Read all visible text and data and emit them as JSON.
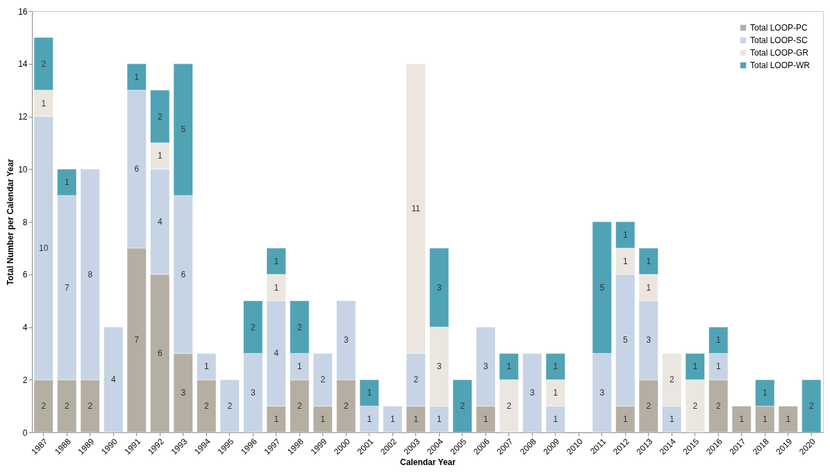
{
  "chart_data": {
    "type": "bar",
    "stacked": true,
    "data_labels": true,
    "grid": false,
    "legend": "top right",
    "xlabel": "Calendar Year",
    "ylabel": "Total Number per Calendar Year",
    "categories": [
      "1987",
      "1988",
      "1989",
      "1990",
      "1991",
      "1992",
      "1993",
      "1994",
      "1995",
      "1996",
      "1997",
      "1998",
      "1999",
      "2000",
      "2001",
      "2002",
      "2003",
      "2004",
      "2005",
      "2006",
      "2007",
      "2008",
      "2009",
      "2010",
      "2011",
      "2012",
      "2013",
      "2014",
      "2015",
      "2016",
      "2017",
      "2018",
      "2019",
      "2020"
    ],
    "ylim": [
      0,
      16
    ],
    "yticks": [
      0,
      2,
      4,
      6,
      8,
      10,
      12,
      14,
      16
    ],
    "series": [
      {
        "name": "Total LOOP-PC",
        "color": "#b5afa3",
        "values": [
          2,
          2,
          2,
          null,
          7,
          6,
          3,
          2,
          null,
          null,
          1,
          2,
          1,
          2,
          null,
          null,
          1,
          null,
          null,
          1,
          null,
          null,
          null,
          null,
          null,
          1,
          2,
          null,
          null,
          2,
          1,
          1,
          1,
          null
        ]
      },
      {
        "name": "Total LOOP-SC",
        "color": "#c6d4e5",
        "values": [
          10,
          7,
          8,
          4,
          6,
          4,
          6,
          1,
          2,
          3,
          4,
          1,
          2,
          3,
          1,
          1,
          2,
          1,
          null,
          3,
          null,
          3,
          1,
          null,
          3,
          5,
          3,
          1,
          null,
          1,
          null,
          null,
          null,
          null
        ]
      },
      {
        "name": "Total LOOP-GR",
        "color": "#ebe6e0",
        "values": [
          1,
          null,
          null,
          null,
          null,
          1,
          null,
          null,
          null,
          null,
          1,
          null,
          null,
          null,
          null,
          null,
          11,
          3,
          null,
          null,
          2,
          null,
          1,
          null,
          null,
          1,
          1,
          2,
          2,
          null,
          null,
          null,
          null,
          null
        ]
      },
      {
        "name": "Total LOOP-WR",
        "color": "#4fa3b5",
        "values": [
          2,
          1,
          null,
          null,
          1,
          2,
          5,
          null,
          null,
          2,
          1,
          2,
          null,
          null,
          1,
          null,
          null,
          3,
          2,
          null,
          1,
          null,
          1,
          null,
          5,
          1,
          1,
          null,
          1,
          1,
          null,
          1,
          null,
          2
        ]
      }
    ]
  }
}
